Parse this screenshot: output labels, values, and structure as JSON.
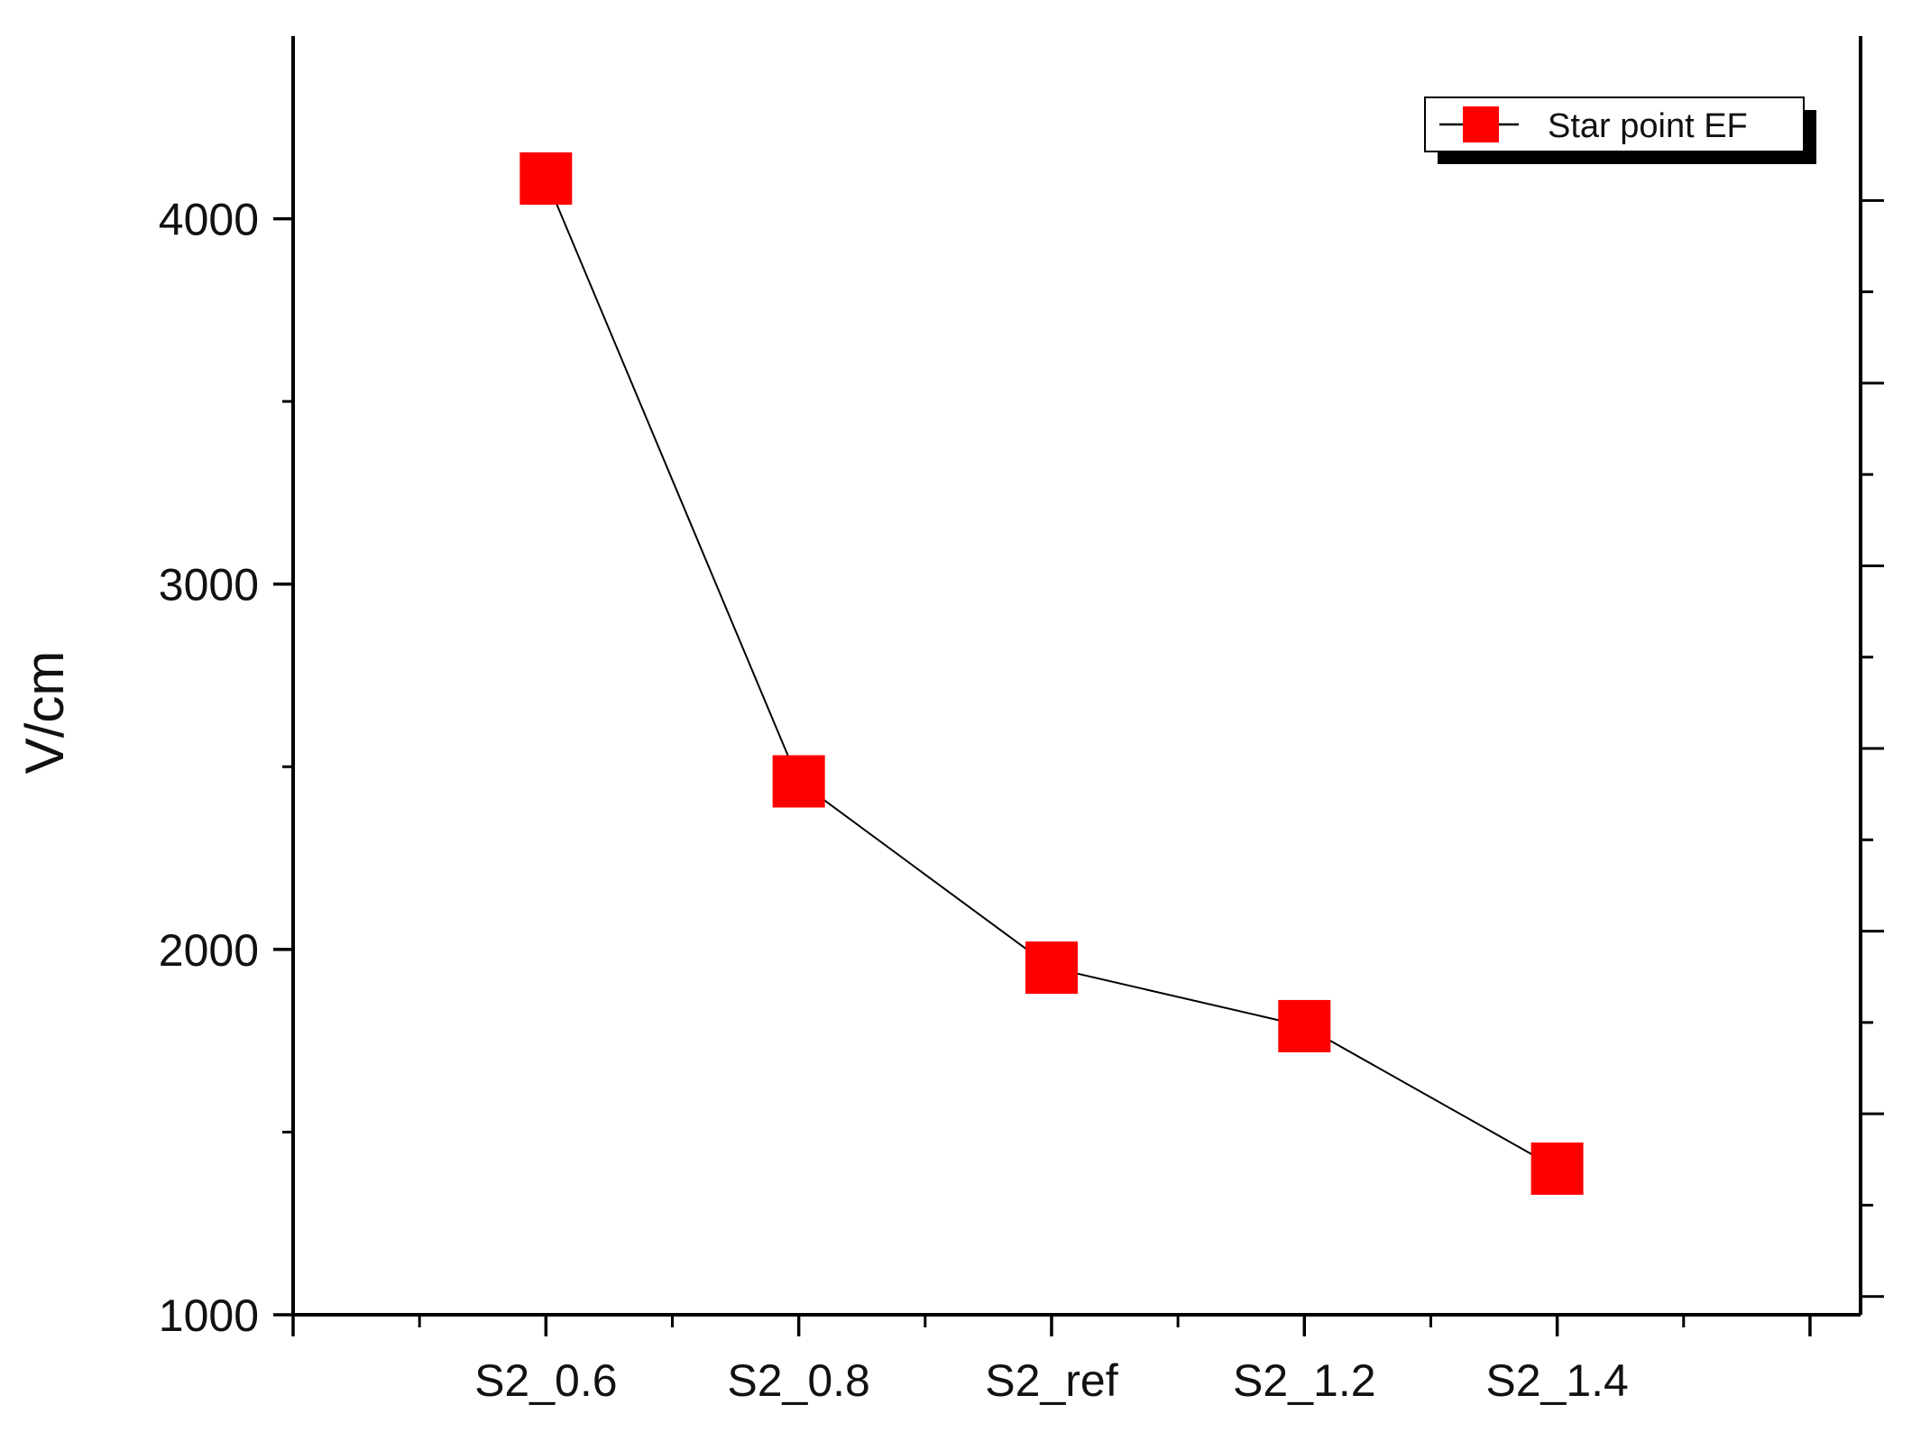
{
  "chart_data": {
    "type": "line",
    "categories": [
      "S2_0.6",
      "S2_0.8",
      "S2_ref",
      "S2_1.2",
      "S2_1.4"
    ],
    "series": [
      {
        "name": "Star point EF",
        "values": [
          4110,
          2460,
          1950,
          1790,
          1400
        ]
      }
    ],
    "title": "",
    "xlabel": "",
    "ylabel": "V/cm",
    "ylim": [
      1000,
      4500
    ],
    "yticks": [
      1000,
      2000,
      3000,
      4000
    ],
    "yticks_minor": [
      1500,
      2500,
      3500
    ],
    "x_categories_range": [
      -1,
      5.2
    ],
    "grid": false,
    "legend": {
      "position": "top-right",
      "label": "Star point EF"
    },
    "colors": {
      "marker": "#ff0000",
      "line": "#000000",
      "axis": "#000000"
    }
  }
}
